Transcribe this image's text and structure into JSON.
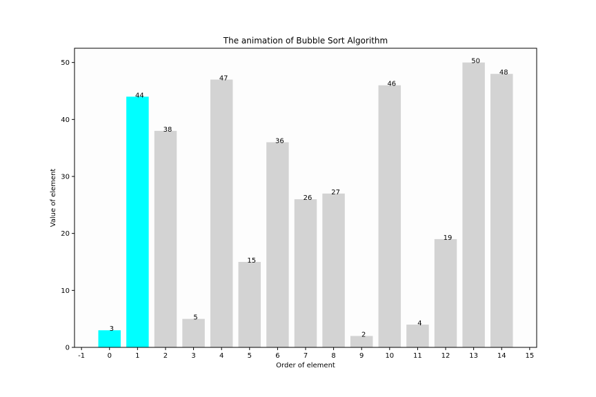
{
  "chart_data": {
    "type": "bar",
    "title": "The animation of Bubble Sort Algorithm",
    "xlabel": "Order of element",
    "ylabel": "Value of element",
    "categories": [
      0,
      1,
      2,
      3,
      4,
      5,
      6,
      7,
      8,
      9,
      10,
      11,
      12,
      13,
      14
    ],
    "values": [
      3,
      44,
      38,
      5,
      47,
      15,
      36,
      26,
      27,
      2,
      46,
      4,
      19,
      50,
      48
    ],
    "highlighted_indices": [
      0,
      1
    ],
    "xlim": [
      -1.25,
      15.25
    ],
    "ylim": [
      0,
      52.5
    ],
    "xticks": [
      -1,
      0,
      1,
      2,
      3,
      4,
      5,
      6,
      7,
      8,
      9,
      10,
      11,
      12,
      13,
      14,
      15
    ],
    "yticks": [
      0,
      10,
      20,
      30,
      40,
      50
    ],
    "grid": false,
    "colors": {
      "bar": "#d3d3d3",
      "highlight": "#00ffff",
      "plot_background": "#fdfdfd",
      "axis": "#000000"
    }
  }
}
